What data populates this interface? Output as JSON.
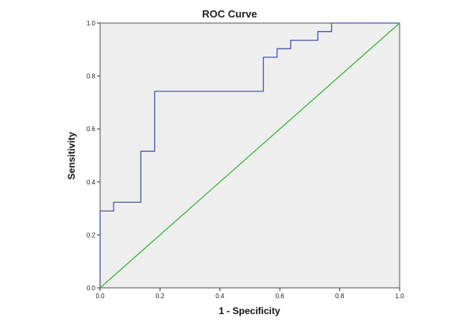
{
  "chart_data": {
    "type": "line",
    "title": "ROC Curve",
    "xlabel": "1 - Specificity",
    "ylabel": "Sensitivity",
    "xlim": [
      0,
      1
    ],
    "ylim": [
      0,
      1
    ],
    "x_ticks": [
      "0.0",
      "0.2",
      "0.4",
      "0.6",
      "0.8",
      "1.0"
    ],
    "y_ticks": [
      "0.0",
      "0.2",
      "0.4",
      "0.6",
      "0.8",
      "1.0"
    ],
    "grid": false,
    "legend": "none",
    "series": [
      {
        "color": "#4f5aa8",
        "style": "step",
        "points": [
          [
            0.0,
            0.0
          ],
          [
            0.0,
            0.29
          ],
          [
            0.045,
            0.29
          ],
          [
            0.045,
            0.323
          ],
          [
            0.136,
            0.323
          ],
          [
            0.136,
            0.516
          ],
          [
            0.182,
            0.516
          ],
          [
            0.182,
            0.742
          ],
          [
            0.545,
            0.742
          ],
          [
            0.545,
            0.871
          ],
          [
            0.591,
            0.871
          ],
          [
            0.591,
            0.903
          ],
          [
            0.636,
            0.903
          ],
          [
            0.636,
            0.935
          ],
          [
            0.727,
            0.935
          ],
          [
            0.727,
            0.968
          ],
          [
            0.773,
            0.968
          ],
          [
            0.773,
            1.0
          ],
          [
            1.0,
            1.0
          ]
        ]
      },
      {
        "color": "#3cb83c",
        "style": "reference",
        "points": [
          [
            0.0,
            0.0
          ],
          [
            1.0,
            1.0
          ]
        ]
      }
    ],
    "colors": {
      "plot_background": "#eeeeee",
      "frame": "#555555",
      "roc_curve": "#4f5aa8",
      "reference_line": "#3cb83c"
    }
  }
}
